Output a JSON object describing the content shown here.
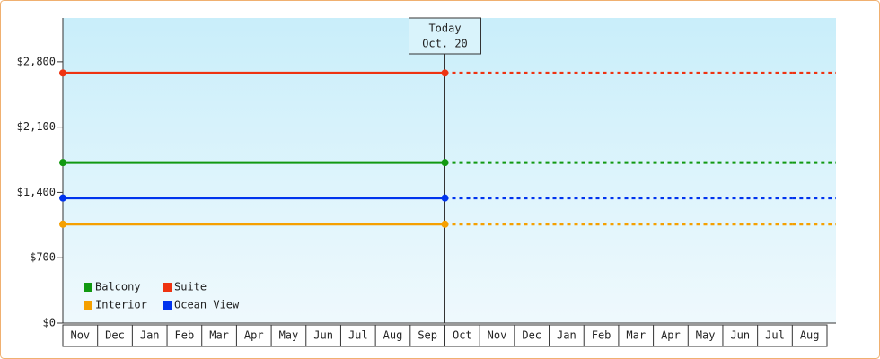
{
  "chart_data": {
    "type": "line",
    "categories": [
      "Nov",
      "Dec",
      "Jan",
      "Feb",
      "Mar",
      "Apr",
      "May",
      "Jun",
      "Jul",
      "Aug",
      "Sep",
      "Oct",
      "Nov",
      "Dec",
      "Jan",
      "Feb",
      "Mar",
      "Apr",
      "May",
      "Jun",
      "Jul",
      "Aug"
    ],
    "series": [
      {
        "name": "Balcony",
        "color": "#119911",
        "values": [
          1720,
          1720,
          1720,
          1720,
          1720,
          1720,
          1720,
          1720,
          1720,
          1720,
          1720,
          1720,
          1720,
          1720,
          1720,
          1720,
          1720,
          1720,
          1720,
          1720,
          1720,
          1720
        ]
      },
      {
        "name": "Suite",
        "color": "#ee3311",
        "values": [
          2680,
          2680,
          2680,
          2680,
          2680,
          2680,
          2680,
          2680,
          2680,
          2680,
          2680,
          2680,
          2680,
          2680,
          2680,
          2680,
          2680,
          2680,
          2680,
          2680,
          2680,
          2680
        ]
      },
      {
        "name": "Interior",
        "color": "#f5a000",
        "values": [
          1060,
          1060,
          1060,
          1060,
          1060,
          1060,
          1060,
          1060,
          1060,
          1060,
          1060,
          1060,
          1060,
          1060,
          1060,
          1060,
          1060,
          1060,
          1060,
          1060,
          1060,
          1060
        ]
      },
      {
        "name": "Ocean View",
        "color": "#0033ee",
        "values": [
          1340,
          1340,
          1340,
          1340,
          1340,
          1340,
          1340,
          1340,
          1340,
          1340,
          1340,
          1340,
          1340,
          1340,
          1340,
          1340,
          1340,
          1340,
          1340,
          1340,
          1340,
          1340
        ]
      }
    ],
    "today_label": [
      "Today",
      "Oct. 20"
    ],
    "today_index": 11,
    "ylim": [
      0,
      3270
    ],
    "yticks": [
      {
        "value": 0,
        "label": "$0"
      },
      {
        "value": 700,
        "label": "$700"
      },
      {
        "value": 1400,
        "label": "$1,400"
      },
      {
        "value": 2100,
        "label": "$2,100"
      },
      {
        "value": 2800,
        "label": "$2,800"
      }
    ]
  }
}
